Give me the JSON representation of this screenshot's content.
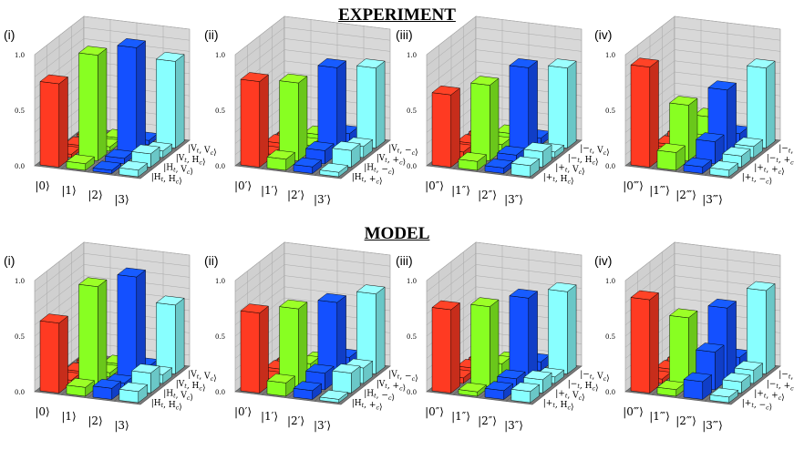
{
  "sections": {
    "experiment": "EXPERIMENT",
    "model": "MODEL"
  },
  "colors": {
    "row0": "#ff3a22",
    "row1": "#88ff22",
    "row2": "#1450ff",
    "row3": "#88ffff",
    "floor": "#7a7a7a",
    "wall": "#d0d0d0"
  },
  "axis": {
    "ticks": [
      "0.0",
      "0.5",
      "1.0"
    ],
    "zlim": [
      0,
      1
    ]
  },
  "chart_data": [
    {
      "type": "bar3d",
      "section": "experiment",
      "label": "(i)",
      "row_labels": [
        "|0⟩",
        "|1⟩",
        "|2⟩",
        "|3⟩"
      ],
      "col_labels": [
        "|H_t, H_c⟩",
        "|H_t, V_c⟩",
        "|V_t, H_c⟩",
        "|V_t, V_c⟩"
      ],
      "values": [
        [
          0.75,
          0.03,
          0.02,
          0.02
        ],
        [
          0.06,
          0.95,
          0.04,
          0.03
        ],
        [
          0.03,
          0.05,
          0.96,
          0.04
        ],
        [
          0.06,
          0.12,
          0.06,
          0.78
        ]
      ]
    },
    {
      "type": "bar3d",
      "section": "experiment",
      "label": "(ii)",
      "row_labels": [
        "|0′⟩",
        "|1′⟩",
        "|2′⟩",
        "|3′⟩"
      ],
      "col_labels": [
        "|H_t, +_c⟩",
        "|H_t, −_c⟩",
        "|V_t, +_c⟩",
        "|V_t, −_c⟩"
      ],
      "values": [
        [
          0.77,
          0.03,
          0.04,
          0.03
        ],
        [
          0.1,
          0.7,
          0.05,
          0.06
        ],
        [
          0.06,
          0.12,
          0.78,
          0.1
        ],
        [
          0.04,
          0.15,
          0.1,
          0.72
        ]
      ]
    },
    {
      "type": "bar3d",
      "section": "experiment",
      "label": "(iii)",
      "row_labels": [
        "|0″⟩",
        "|1″⟩",
        "|2″⟩",
        "|3″⟩"
      ],
      "col_labels": [
        "|+_t, H_c⟩",
        "|+_t, V_c⟩",
        "|−_t, H_c⟩",
        "|−_t, V_c⟩"
      ],
      "values": [
        [
          0.65,
          0.05,
          0.04,
          0.04
        ],
        [
          0.08,
          0.68,
          0.06,
          0.07
        ],
        [
          0.05,
          0.08,
          0.78,
          0.06
        ],
        [
          0.1,
          0.14,
          0.05,
          0.72
        ]
      ]
    },
    {
      "type": "bar3d",
      "section": "experiment",
      "label": "(iv)",
      "row_labels": [
        "|0‴⟩",
        "|1‴⟩",
        "|2‴⟩",
        "|3‴⟩"
      ],
      "col_labels": [
        "|+_t, −_c⟩",
        "|+_t, +_c⟩",
        "|−_t, +_c⟩",
        "|−_t, −_c⟩"
      ],
      "values": [
        [
          0.9,
          0.03,
          0.03,
          0.04
        ],
        [
          0.16,
          0.5,
          0.08,
          0.22
        ],
        [
          0.06,
          0.2,
          0.58,
          0.1
        ],
        [
          0.06,
          0.1,
          0.1,
          0.72
        ]
      ]
    },
    {
      "type": "bar3d",
      "section": "model",
      "label": "(i)",
      "row_labels": [
        "|0⟩",
        "|1⟩",
        "|2⟩",
        "|3⟩"
      ],
      "col_labels": [
        "|H_t, H_c⟩",
        "|H_t, V_c⟩",
        "|V_t, H_c⟩",
        "|V_t, V_c⟩"
      ],
      "values": [
        [
          0.63,
          0.03,
          0.02,
          0.02
        ],
        [
          0.08,
          0.9,
          0.04,
          0.03
        ],
        [
          0.1,
          0.06,
          0.93,
          0.04
        ],
        [
          0.1,
          0.18,
          0.08,
          0.62
        ]
      ]
    },
    {
      "type": "bar3d",
      "section": "model",
      "label": "(ii)",
      "row_labels": [
        "|0′⟩",
        "|1′⟩",
        "|2′⟩",
        "|3′⟩"
      ],
      "col_labels": [
        "|H_t, +_c⟩",
        "|H_t, −_c⟩",
        "|V_t, +_c⟩",
        "|V_t, −_c⟩"
      ],
      "values": [
        [
          0.72,
          0.04,
          0.04,
          0.03
        ],
        [
          0.12,
          0.7,
          0.12,
          0.06
        ],
        [
          0.08,
          0.15,
          0.7,
          0.12
        ],
        [
          0.03,
          0.18,
          0.14,
          0.72
        ]
      ]
    },
    {
      "type": "bar3d",
      "section": "model",
      "label": "(iii)",
      "row_labels": [
        "|0″⟩",
        "|1″⟩",
        "|2″⟩",
        "|3″⟩"
      ],
      "col_labels": [
        "|+_t, H_c⟩",
        "|+_t, V_c⟩",
        "|−_t, H_c⟩",
        "|−_t, V_c⟩"
      ],
      "values": [
        [
          0.75,
          0.05,
          0.05,
          0.04
        ],
        [
          0.04,
          0.72,
          0.12,
          0.06
        ],
        [
          0.08,
          0.1,
          0.74,
          0.08
        ],
        [
          0.1,
          0.12,
          0.06,
          0.74
        ]
      ]
    },
    {
      "type": "bar3d",
      "section": "model",
      "label": "(iv)",
      "row_labels": [
        "|0‴⟩",
        "|1‴⟩",
        "|2‴⟩",
        "|3‴⟩"
      ],
      "col_labels": [
        "|+_t, −_c⟩",
        "|+_t, +_c⟩",
        "|−_t, +_c⟩",
        "|−_t, −_c⟩"
      ],
      "values": [
        [
          0.84,
          0.04,
          0.04,
          0.04
        ],
        [
          0.06,
          0.62,
          0.1,
          0.08
        ],
        [
          0.16,
          0.34,
          0.65,
          0.12
        ],
        [
          0.05,
          0.1,
          0.12,
          0.75
        ]
      ]
    }
  ]
}
